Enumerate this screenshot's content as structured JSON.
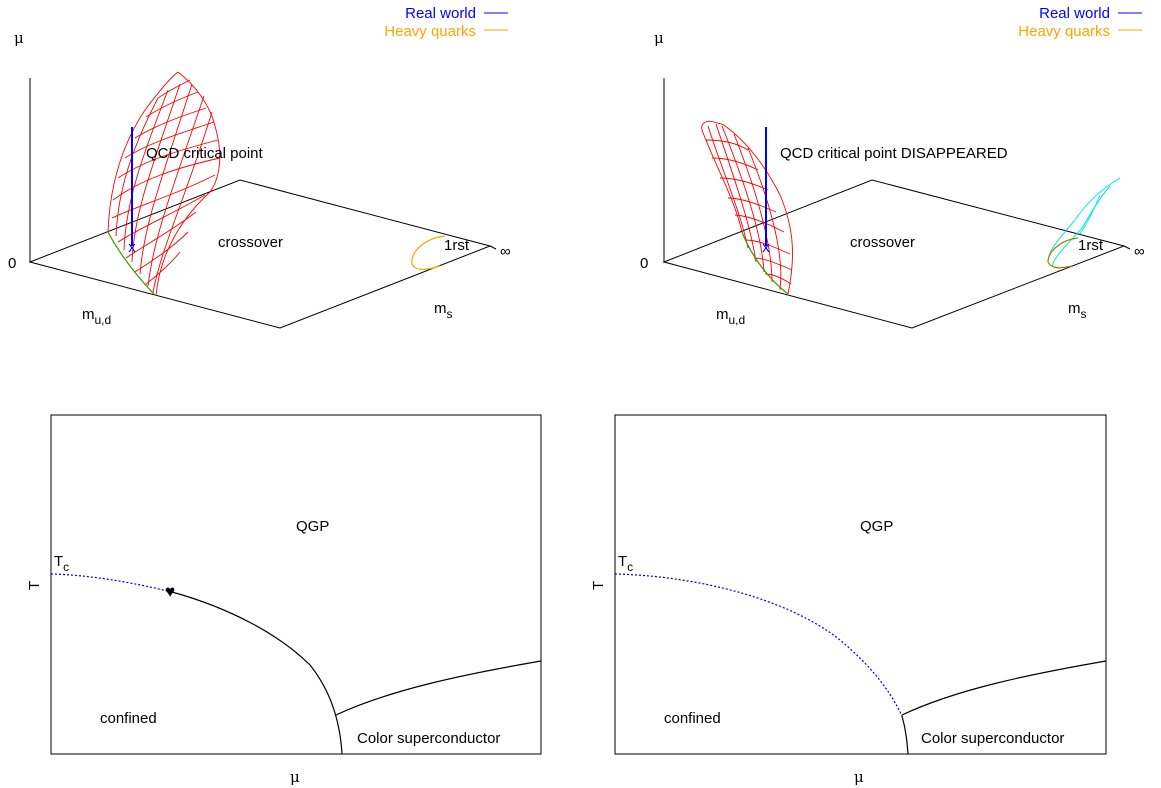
{
  "colors": {
    "real_world": "#0000ff",
    "heavy_quarks": "#ffa500",
    "surface": "#ff0000",
    "boundary": "#339900",
    "secondary_surface": "#00e5ee",
    "crossover_line": "#0000cc",
    "transition_line": "#000000"
  },
  "panels": {
    "top_left": {
      "legend": {
        "real_world": "Real world",
        "heavy_quarks": "Heavy quarks"
      },
      "axis_mu": "μ",
      "axis_zero": "0",
      "axis_mud_base": "m",
      "axis_mud_sub": "u,d",
      "axis_ms_base": "m",
      "axis_ms_sub": "s",
      "infinity": "∞",
      "region_crossover": "crossover",
      "region_first": "1rst",
      "annotation": "QCD critical point",
      "marker": "x"
    },
    "top_right": {
      "legend": {
        "real_world": "Real world",
        "heavy_quarks": "Heavy quarks"
      },
      "axis_mu": "μ",
      "axis_zero": "0",
      "axis_mud_base": "m",
      "axis_mud_sub": "u,d",
      "axis_ms_base": "m",
      "axis_ms_sub": "s",
      "infinity": "∞",
      "region_crossover": "crossover",
      "region_first": "1rst",
      "annotation": "QCD critical point DISAPPEARED",
      "marker": "x"
    },
    "bottom_left": {
      "region_qgp": "QGP",
      "region_confined": "confined",
      "region_csc": "Color superconductor",
      "tc_base": "T",
      "tc_sub": "c",
      "axis_x": "μ",
      "axis_y": "T",
      "critical_point": "♥"
    },
    "bottom_right": {
      "region_qgp": "QGP",
      "region_confined": "confined",
      "region_csc": "Color superconductor",
      "tc_base": "T",
      "tc_sub": "c",
      "axis_x": "μ",
      "axis_y": "T"
    }
  }
}
